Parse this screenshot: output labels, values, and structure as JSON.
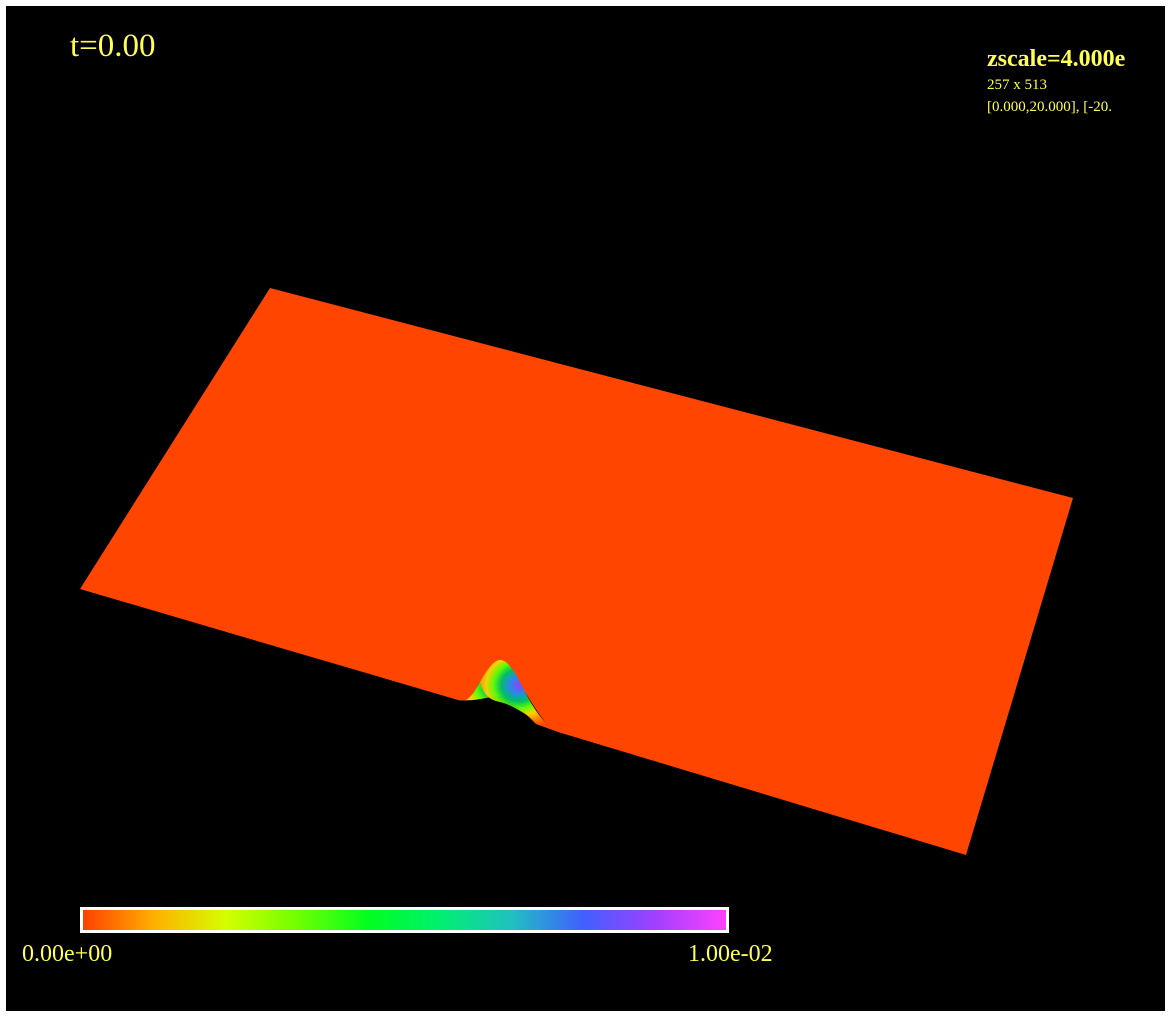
{
  "time_label": "t=0.00",
  "info": {
    "zscale": "zscale=4.000e",
    "grid_size": "257 x 513",
    "domain": "[0.000,20.000], [-20."
  },
  "colorbar": {
    "min_label": "0.00e+00",
    "max_label": "1.00e-02",
    "min_value": 0.0,
    "max_value": 0.01,
    "stops": [
      "#ff4000",
      "#ffb000",
      "#d4ff00",
      "#70ff00",
      "#00ff20",
      "#00f070",
      "#20c0c0",
      "#4060ff",
      "#a040ff",
      "#ff40ff"
    ]
  },
  "colors": {
    "background": "#000000",
    "surface": "#ff4500",
    "text": "#ffff54",
    "border": "#ffffff"
  }
}
